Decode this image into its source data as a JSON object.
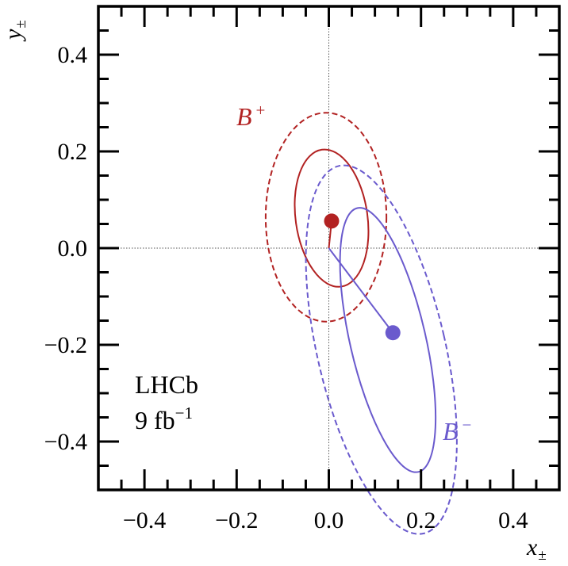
{
  "chart_data": {
    "type": "scatter",
    "xlabel": "x",
    "xlabel_sub": "±",
    "ylabel": "y",
    "ylabel_sub": "±",
    "xlim": [
      -0.5,
      0.5
    ],
    "ylim": [
      -0.5,
      0.5
    ],
    "x_ticks": [
      -0.4,
      -0.2,
      0.0,
      0.2,
      0.4
    ],
    "x_tick_labels": [
      "−0.4",
      "−0.2",
      "0.0",
      "0.2",
      "0.4"
    ],
    "y_ticks": [
      -0.4,
      -0.2,
      0.0,
      0.2,
      0.4
    ],
    "y_tick_labels": [
      "−0.4",
      "−0.2",
      "0.0",
      "0.2",
      "0.4"
    ],
    "reference_lines": {
      "x": 0.0,
      "y": 0.0,
      "style": "dotted"
    },
    "annotation": {
      "line1": "LHCb",
      "line2_base": "9 fb",
      "line2_sup": "−1"
    },
    "series": [
      {
        "name": "B",
        "name_sup": "+",
        "color": "#b22222",
        "point": {
          "x": 0.006,
          "y": 0.056
        },
        "contours": [
          {
            "level": "solid",
            "cx": 0.006,
            "cy": 0.062,
            "rx": 0.078,
            "ry": 0.143,
            "angle": -8
          },
          {
            "level": "dashed",
            "cx": -0.006,
            "cy": 0.064,
            "rx": 0.131,
            "ry": 0.216,
            "angle": 0
          }
        ]
      },
      {
        "name": "B",
        "name_sup": "−",
        "color": "#6a5acd",
        "point": {
          "x": 0.139,
          "y": -0.175
        },
        "contours": [
          {
            "level": "solid",
            "cx": 0.128,
            "cy": -0.19,
            "rx": 0.082,
            "ry": 0.28,
            "angle": -13
          },
          {
            "level": "dashed",
            "cx": 0.114,
            "cy": -0.21,
            "rx": 0.139,
            "ry": 0.39,
            "angle": -13
          }
        ]
      }
    ]
  }
}
